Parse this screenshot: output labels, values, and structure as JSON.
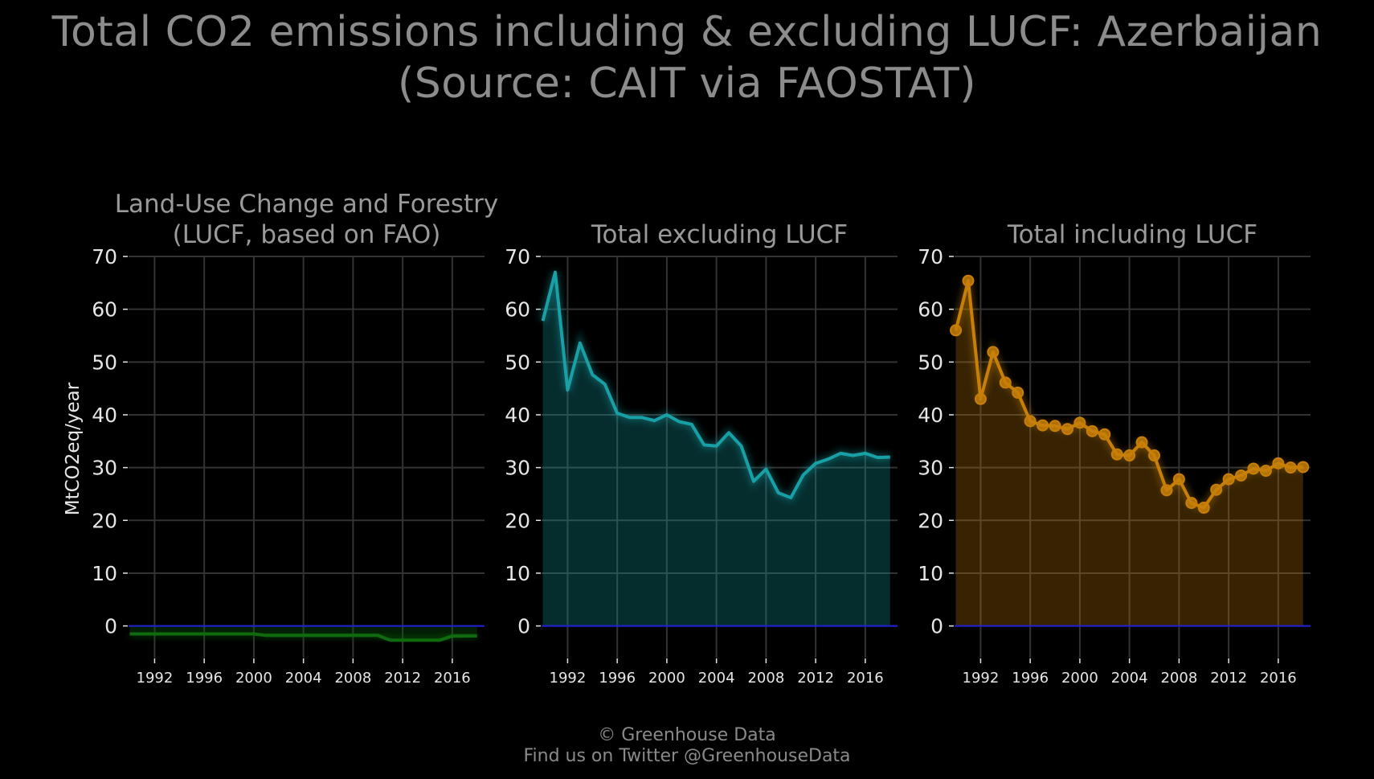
{
  "title": {
    "line1": "Total CO2 emissions including & excluding LUCF: Azerbaijan",
    "line2": "(Source: CAIT via FAOSTAT)"
  },
  "footer": {
    "line1": "© Greenhouse Data",
    "line2": "Find us on Twitter @GreenhouseData"
  },
  "colors": {
    "background": "#000000",
    "grid": "#333333",
    "axis_text": "#e6e6e6",
    "title_text": "#8c8c8c",
    "zero_line": "#1f1fd6",
    "lucf": "#0e6b0e",
    "excluding": "#17a0a6",
    "including": "#c77f08"
  },
  "chart_data": [
    {
      "type": "area",
      "title": "Land-Use Change and Forestry\n(LUCF, based on FAO)",
      "ylabel": "MtCO2eq/year",
      "ylim": [
        -6,
        70
      ],
      "yticks": [
        0,
        10,
        20,
        30,
        40,
        50,
        60,
        70
      ],
      "xlim": [
        1989.9,
        2018.6
      ],
      "xticks": [
        1992,
        1996,
        2000,
        2004,
        2008,
        2012,
        2016
      ],
      "grid": true,
      "color": "#0e6b0e",
      "markers": false,
      "x": [
        1990,
        1991,
        1992,
        1993,
        1994,
        1995,
        1996,
        1997,
        1998,
        1999,
        2000,
        2001,
        2002,
        2003,
        2004,
        2005,
        2006,
        2007,
        2008,
        2009,
        2010,
        2011,
        2012,
        2013,
        2014,
        2015,
        2016,
        2017,
        2018
      ],
      "values": [
        -1.5,
        -1.5,
        -1.5,
        -1.5,
        -1.5,
        -1.5,
        -1.5,
        -1.5,
        -1.5,
        -1.5,
        -1.5,
        -1.8,
        -1.8,
        -1.8,
        -1.8,
        -1.8,
        -1.8,
        -1.8,
        -1.8,
        -1.8,
        -1.8,
        -2.7,
        -2.7,
        -2.7,
        -2.7,
        -2.7,
        -1.9,
        -1.9,
        -1.9
      ]
    },
    {
      "type": "area",
      "title": "Total excluding LUCF",
      "ylim": [
        -6,
        70
      ],
      "yticks": [
        0,
        10,
        20,
        30,
        40,
        50,
        60,
        70
      ],
      "xlim": [
        1989.9,
        2018.6
      ],
      "xticks": [
        1992,
        1996,
        2000,
        2004,
        2008,
        2012,
        2016
      ],
      "grid": true,
      "color": "#17a0a6",
      "markers": false,
      "x": [
        1990,
        1991,
        1992,
        1993,
        1994,
        1995,
        1996,
        1997,
        1998,
        1999,
        2000,
        2001,
        2002,
        2003,
        2004,
        2005,
        2006,
        2007,
        2008,
        2009,
        2010,
        2011,
        2012,
        2013,
        2014,
        2015,
        2016,
        2017,
        2018
      ],
      "values": [
        57.8,
        67.0,
        44.7,
        53.6,
        47.6,
        45.8,
        40.3,
        39.5,
        39.5,
        38.9,
        40.0,
        38.7,
        38.2,
        34.3,
        34.1,
        36.6,
        34.1,
        27.4,
        29.7,
        25.2,
        24.3,
        28.6,
        30.8,
        31.6,
        32.7,
        32.3,
        32.7,
        31.9,
        32.0
      ]
    },
    {
      "type": "area",
      "title": "Total including LUCF",
      "ylim": [
        -6,
        70
      ],
      "yticks": [
        0,
        10,
        20,
        30,
        40,
        50,
        60,
        70
      ],
      "xlim": [
        1989.9,
        2018.6
      ],
      "xticks": [
        1992,
        1996,
        2000,
        2004,
        2008,
        2012,
        2016
      ],
      "grid": true,
      "color": "#c77f08",
      "markers": true,
      "x": [
        1990,
        1991,
        1992,
        1993,
        1994,
        1995,
        1996,
        1997,
        1998,
        1999,
        2000,
        2001,
        2002,
        2003,
        2004,
        2005,
        2006,
        2007,
        2008,
        2009,
        2010,
        2011,
        2012,
        2013,
        2014,
        2015,
        2016,
        2017,
        2018
      ],
      "values": [
        56.0,
        65.4,
        43.0,
        51.9,
        46.1,
        44.2,
        38.8,
        38.0,
        37.9,
        37.3,
        38.5,
        36.9,
        36.3,
        32.5,
        32.3,
        34.8,
        32.3,
        25.7,
        27.8,
        23.3,
        22.4,
        25.8,
        27.8,
        28.5,
        29.8,
        29.4,
        30.8,
        30.0,
        30.1
      ]
    }
  ]
}
